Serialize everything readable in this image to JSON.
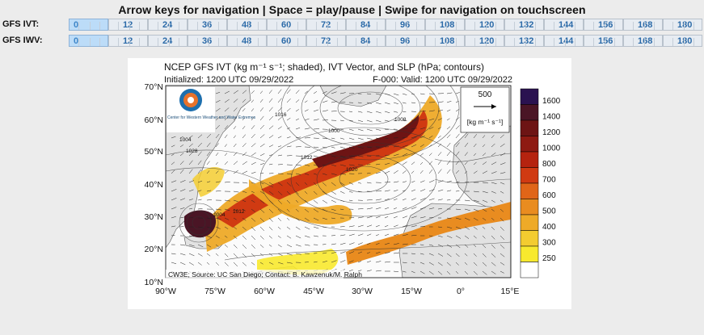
{
  "header": {
    "instructions": "Arrow keys for navigation | Space = play/pause | Swipe for navigation on touchscreen"
  },
  "rows": [
    {
      "label": "GFS IVT:",
      "hours": [
        "0",
        "12",
        "24",
        "36",
        "48",
        "60",
        "72",
        "84",
        "96",
        "108",
        "120",
        "132",
        "144",
        "156",
        "168",
        "180"
      ],
      "active": "0"
    },
    {
      "label": "GFS IWV:",
      "hours": [
        "0",
        "12",
        "24",
        "36",
        "48",
        "60",
        "72",
        "84",
        "96",
        "108",
        "120",
        "132",
        "144",
        "156",
        "168",
        "180"
      ],
      "active": "0"
    }
  ],
  "map": {
    "title": "NCEP GFS IVT (kg m⁻¹ s⁻¹; shaded), IVT Vector, and SLP (hPa; contours)",
    "initialized": "Initialized: 1200 UTC 09/29/2022",
    "valid": "F-000: Valid: 1200 UTC 09/29/2022",
    "vector_ref_value": "500",
    "vector_ref_units": "[kg m⁻¹ s⁻¹]",
    "credit": "CW3E; Source: UC San Diego; Contact: B. Kawzenuk/M. Ralph",
    "logo_text": "Center for Western Weather and Water Extremes",
    "lat_labels": [
      "70°N",
      "60°N",
      "50°N",
      "40°N",
      "30°N",
      "20°N",
      "10°N"
    ],
    "lon_labels": [
      "90°W",
      "75°W",
      "60°W",
      "45°W",
      "30°W",
      "15°W",
      "0°",
      "15°E"
    ],
    "pressure_labels": [
      "1016",
      "1008",
      "1004",
      "1028",
      "1000",
      "1012",
      "1020",
      "1016",
      "1008",
      "1004",
      "1012"
    ],
    "colorbar": [
      {
        "label": "1600",
        "color": "#2a1250"
      },
      {
        "label": "1400",
        "color": "#4a1525"
      },
      {
        "label": "1200",
        "color": "#6d1414"
      },
      {
        "label": "1000",
        "color": "#8e1a12"
      },
      {
        "label": "800",
        "color": "#b5230f"
      },
      {
        "label": "700",
        "color": "#d03a12"
      },
      {
        "label": "600",
        "color": "#e06518"
      },
      {
        "label": "500",
        "color": "#e98c20"
      },
      {
        "label": "400",
        "color": "#eeaa28"
      },
      {
        "label": "300",
        "color": "#f3cc30"
      },
      {
        "label": "250",
        "color": "#f8e92e"
      }
    ]
  }
}
